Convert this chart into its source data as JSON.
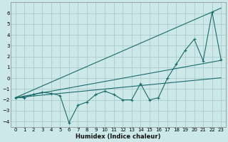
{
  "xlabel": "Humidex (Indice chaleur)",
  "background_color": "#cce8e8",
  "grid_color": "#aacccc",
  "line_color": "#1a6b6b",
  "xlim": [
    -0.5,
    23.5
  ],
  "ylim": [
    -4.5,
    7.0
  ],
  "yticks": [
    -4,
    -3,
    -2,
    -1,
    0,
    1,
    2,
    3,
    4,
    5,
    6
  ],
  "xticks": [
    0,
    1,
    2,
    3,
    4,
    5,
    6,
    7,
    8,
    9,
    10,
    11,
    12,
    13,
    14,
    15,
    16,
    17,
    18,
    19,
    20,
    21,
    22,
    23
  ],
  "x": [
    0,
    1,
    2,
    3,
    4,
    5,
    6,
    7,
    8,
    9,
    10,
    11,
    12,
    13,
    14,
    15,
    16,
    17,
    18,
    19,
    20,
    21,
    22,
    23
  ],
  "y_data": [
    -1.8,
    -1.8,
    -1.5,
    -1.3,
    -1.4,
    -1.6,
    -4.1,
    -2.5,
    -2.2,
    -1.5,
    -1.2,
    -1.5,
    -2.0,
    -2.0,
    -0.5,
    -2.0,
    -1.8,
    0.0,
    1.3,
    2.6,
    3.6,
    1.6,
    6.1,
    1.7
  ],
  "y_reg_steep": [
    -1.8,
    -1.44,
    -1.08,
    -0.72,
    -0.36,
    0.0,
    0.36,
    0.72,
    1.08,
    1.44,
    1.8,
    2.16,
    2.52,
    2.88,
    3.24,
    3.6,
    3.96,
    4.32,
    4.68,
    5.04,
    5.4,
    5.76,
    6.12,
    6.48
  ],
  "y_reg_mid": [
    -1.8,
    -1.65,
    -1.5,
    -1.35,
    -1.2,
    -1.05,
    -0.9,
    -0.75,
    -0.6,
    -0.45,
    -0.3,
    -0.15,
    0.0,
    0.15,
    0.3,
    0.45,
    0.6,
    0.75,
    0.9,
    1.05,
    1.2,
    1.35,
    1.5,
    1.65
  ],
  "y_reg_flat": [
    -1.8,
    -1.72,
    -1.64,
    -1.56,
    -1.48,
    -1.4,
    -1.32,
    -1.24,
    -1.16,
    -1.08,
    -1.0,
    -0.92,
    -0.84,
    -0.76,
    -0.68,
    -0.6,
    -0.52,
    -0.44,
    -0.36,
    -0.28,
    -0.2,
    -0.12,
    -0.04,
    0.04
  ]
}
